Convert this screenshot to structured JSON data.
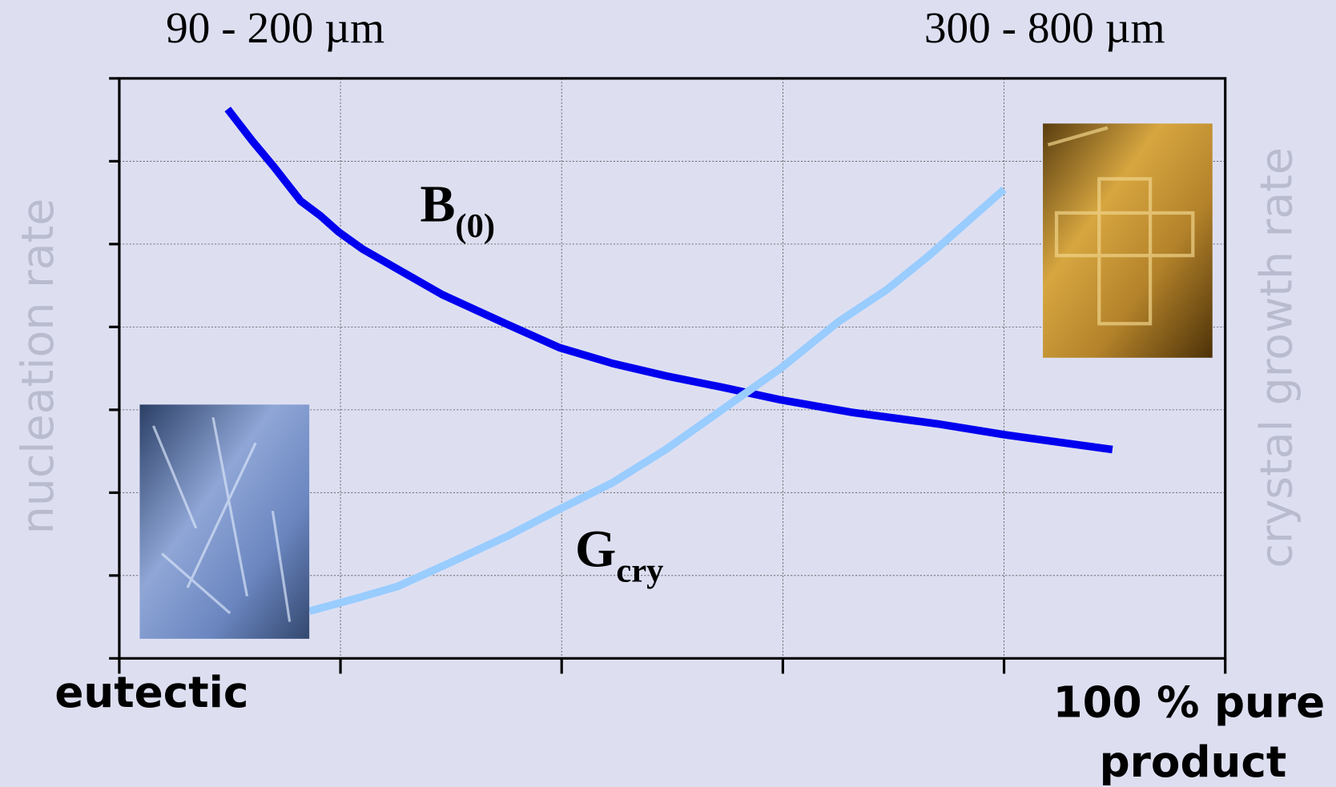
{
  "chart_data": {
    "type": "line",
    "top_labels": [
      "90 - 200 µm",
      "300 - 800 µm"
    ],
    "y_label": "nucleation rate",
    "y2_label": "crystal growth rate",
    "x_label_left": "eutectic",
    "x_label_right": [
      "100 % pure",
      "product"
    ],
    "xlim": [
      0,
      5
    ],
    "xticks": [
      0,
      1,
      2,
      3,
      4,
      5
    ],
    "ylim": [
      0,
      7
    ],
    "yticks": [
      0,
      1,
      2,
      3,
      4,
      5,
      6,
      7
    ],
    "grid": true,
    "series": [
      {
        "color": "#0000ee",
        "x": [
          0.49,
          0.6,
          0.7,
          0.82,
          0.91,
          0.99,
          1.1,
          1.27,
          1.46,
          1.73,
          1.99,
          2.23,
          2.47,
          2.73,
          2.99,
          3.31,
          3.7,
          4.0,
          4.49
        ],
        "values": [
          6.63,
          6.25,
          5.93,
          5.52,
          5.34,
          5.15,
          4.94,
          4.68,
          4.39,
          4.06,
          3.75,
          3.56,
          3.41,
          3.27,
          3.12,
          2.97,
          2.83,
          2.7,
          2.52
        ]
      },
      {
        "color": "#99ccff",
        "x": [
          0.86,
          1.08,
          1.26,
          1.5,
          1.75,
          1.99,
          2.23,
          2.47,
          2.73,
          2.99,
          3.25,
          3.47,
          3.66,
          4.0
        ],
        "values": [
          0.57,
          0.73,
          0.87,
          1.16,
          1.47,
          1.8,
          2.12,
          2.52,
          3.01,
          3.5,
          4.06,
          4.45,
          4.86,
          5.66
        ]
      }
    ],
    "annotations": [
      {
        "text": "B",
        "sub": "(0)"
      },
      {
        "text": "G",
        "sub": "cry"
      }
    ]
  }
}
